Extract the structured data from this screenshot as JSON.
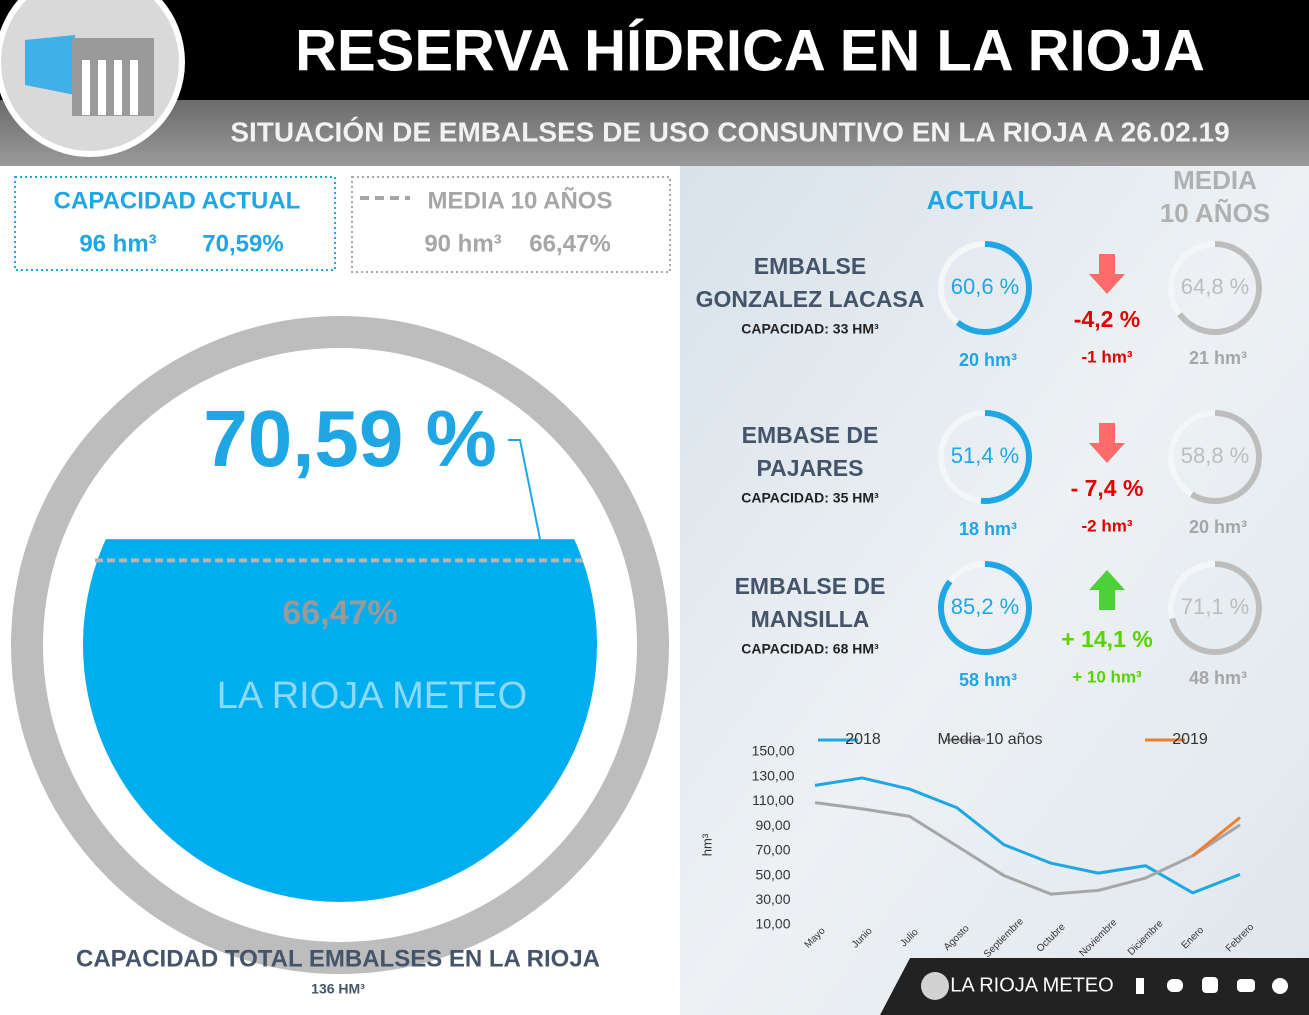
{
  "header": {
    "title": "RESERVA HÍDRICA EN LA RIOJA",
    "subtitle": "SITUACIÓN DE EMBALSES DE USO CONSUNTIVO EN LA RIOJA A 26.02.19"
  },
  "summary": {
    "current": {
      "title": "CAPACIDAD ACTUAL",
      "volume": "96 hm³",
      "percent": "70,59%"
    },
    "average": {
      "title": "MEDIA 10 AÑOS",
      "volume": "90 hm³",
      "percent": "66,47%"
    }
  },
  "gauge": {
    "level": {
      "value": 70.59,
      "label": "70,59 %"
    },
    "average": {
      "value": 66.47,
      "label": "66,47%"
    },
    "watermark": "LA RIOJA METEO",
    "caption": "CAPACIDAD TOTAL EMBALSES EN LA RIOJA",
    "capacity": "136 HM³"
  },
  "columns": {
    "actual": "ACTUAL",
    "average": [
      "MEDIA",
      "10 AÑOS"
    ]
  },
  "reservoirs": [
    {
      "name": [
        "EMBALSE",
        "GONZALEZ LACASA"
      ],
      "capacity": "CAPACIDAD: 33 HM³",
      "actual": {
        "value": 60.6,
        "label": "60,6 %"
      },
      "actual_volume": "20 hm³",
      "change": {
        "value": -4.2,
        "label": "-4,2 %"
      },
      "change_volume": "-1 hm³",
      "average": {
        "value": 64.8,
        "label": "64,8 %"
      },
      "average_volume": "21 hm³"
    },
    {
      "name": [
        "EMBASE DE",
        "PAJARES"
      ],
      "capacity": "CAPACIDAD: 35 HM³",
      "actual": {
        "value": 51.4,
        "label": "51,4 %"
      },
      "actual_volume": "18 hm³",
      "change": {
        "value": -7.4,
        "label": "- 7,4 %"
      },
      "change_volume": "-2 hm³",
      "average": {
        "value": 58.8,
        "label": "58,8 %"
      },
      "average_volume": "20 hm³"
    },
    {
      "name": [
        "EMBALSE DE",
        "MANSILLA"
      ],
      "capacity": "CAPACIDAD: 68 HM³",
      "actual": {
        "value": 85.2,
        "label": "85,2 %"
      },
      "actual_volume": "58 hm³",
      "change": {
        "value": 14.1,
        "label": "+ 14,1 %"
      },
      "change_volume": "+ 10 hm³",
      "average": {
        "value": 71.1,
        "label": "71,1 %"
      },
      "average_volume": "48 hm³"
    }
  ],
  "chart_data": {
    "type": "line",
    "y_label": "hm³",
    "categories": [
      "Mayo",
      "Junio",
      "Julio",
      "Agosto",
      "Septiembre",
      "Octubre",
      "Noviembre",
      "Diciembre",
      "Enero",
      "Febrero"
    ],
    "series": [
      {
        "name": "2018",
        "color": "#1ea7e4",
        "values": [
          123,
          129,
          120,
          105,
          75,
          60,
          52,
          58,
          36,
          51
        ]
      },
      {
        "name": "Media 10 años",
        "color": "#a6a6a6",
        "values": [
          109,
          104,
          98,
          74,
          50,
          35,
          38,
          48,
          66,
          91
        ]
      },
      {
        "name": "2019",
        "color": "#ed7d31",
        "values": [
          null,
          null,
          null,
          null,
          null,
          null,
          null,
          null,
          66,
          97
        ]
      }
    ],
    "ylim": [
      10,
      150
    ],
    "yticks": [
      {
        "value": 10,
        "label": "10,00"
      },
      {
        "value": 30,
        "label": "30,00"
      },
      {
        "value": 50,
        "label": "50,00"
      },
      {
        "value": 70,
        "label": "70,00"
      },
      {
        "value": 90,
        "label": "90,00"
      },
      {
        "value": 110,
        "label": "110,00"
      },
      {
        "value": 130,
        "label": "130,00"
      },
      {
        "value": 150,
        "label": "150,00"
      }
    ]
  },
  "footer": {
    "brand": "LA RIOJA METEO"
  }
}
